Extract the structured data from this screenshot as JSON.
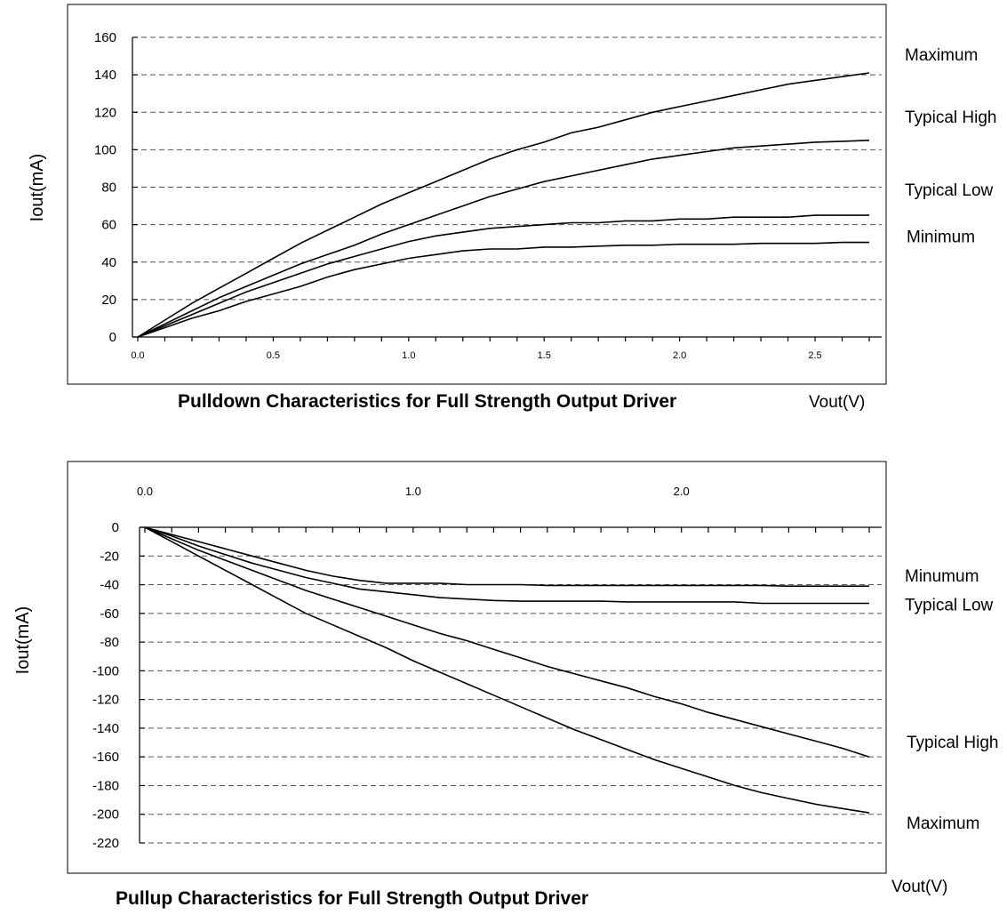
{
  "chart_data": [
    {
      "type": "line",
      "title": "Pulldown Characteristics for Full Strength Output Driver",
      "ylabel": "Iout(mA)",
      "xlabel": "Vout(V)",
      "xlim": [
        0,
        2.7
      ],
      "ylim": [
        0,
        160
      ],
      "yticks": [
        "0",
        "20",
        "40",
        "60",
        "80",
        "100",
        "120",
        "140",
        "160"
      ],
      "xticks": [
        "0.0",
        "0.5",
        "1.0",
        "1.5",
        "2.0",
        "2.5"
      ],
      "grid": true,
      "x": [
        0,
        0.1,
        0.2,
        0.3,
        0.4,
        0.5,
        0.6,
        0.7,
        0.8,
        0.9,
        1.0,
        1.1,
        1.2,
        1.3,
        1.4,
        1.5,
        1.6,
        1.7,
        1.8,
        1.9,
        2.0,
        2.1,
        2.2,
        2.3,
        2.4,
        2.5,
        2.6,
        2.7
      ],
      "series": [
        {
          "name": "Maximum",
          "values": [
            0,
            9,
            18,
            26,
            34,
            42,
            50,
            57,
            64,
            71,
            77,
            83,
            89,
            95,
            100,
            104,
            109,
            112,
            116,
            120,
            123,
            126,
            129,
            132,
            135,
            137,
            139,
            141
          ]
        },
        {
          "name": "Typical High",
          "values": [
            0,
            7,
            14,
            21,
            27,
            33,
            39,
            44,
            49,
            55,
            60,
            65,
            70,
            75,
            79,
            83,
            86,
            89,
            92,
            95,
            97,
            99,
            101,
            102,
            103,
            104,
            104.5,
            105
          ]
        },
        {
          "name": "Typical Low",
          "values": [
            0,
            6,
            12,
            18,
            24,
            29,
            34,
            39,
            43,
            47,
            51,
            54,
            56,
            58,
            59,
            60,
            61,
            61,
            62,
            62,
            63,
            63,
            64,
            64,
            64,
            65,
            65,
            65
          ]
        },
        {
          "name": "Minimum",
          "values": [
            0,
            5,
            10,
            14,
            19,
            23,
            27,
            32,
            36,
            39,
            42,
            44,
            46,
            47,
            47,
            48,
            48,
            48.5,
            49,
            49,
            49.5,
            49.5,
            49.5,
            50,
            50,
            50,
            50.5,
            50.5
          ]
        }
      ]
    },
    {
      "type": "line",
      "title": "Pullup Characteristics for Full Strength Output Driver",
      "ylabel": "Iout(mA)",
      "xlabel": "Vout(V)",
      "xlim": [
        0,
        2.7
      ],
      "ylim": [
        -220,
        0
      ],
      "yticks": [
        "0",
        "-20",
        "-40",
        "-60",
        "-80",
        "-100",
        "-120",
        "-140",
        "-160",
        "-180",
        "-200",
        "-220"
      ],
      "xticks": [
        "0.0",
        "1.0",
        "2.0"
      ],
      "grid": true,
      "x": [
        0,
        0.1,
        0.2,
        0.3,
        0.4,
        0.5,
        0.6,
        0.7,
        0.8,
        0.9,
        1.0,
        1.1,
        1.2,
        1.3,
        1.4,
        1.5,
        1.6,
        1.7,
        1.8,
        1.9,
        2.0,
        2.1,
        2.2,
        2.3,
        2.4,
        2.5,
        2.6,
        2.7
      ],
      "series": [
        {
          "name": "Minumum",
          "values": [
            0,
            -5,
            -10,
            -15,
            -20,
            -25,
            -30,
            -34,
            -37,
            -39,
            -39,
            -39,
            -40,
            -40,
            -40,
            -40.5,
            -40.5,
            -40.5,
            -40.5,
            -40.5,
            -40.5,
            -40.5,
            -40.5,
            -40.5,
            -41,
            -41,
            -41,
            -41
          ]
        },
        {
          "name": "Typical Low",
          "values": [
            0,
            -6,
            -13,
            -19,
            -25,
            -30,
            -35,
            -39,
            -43,
            -45,
            -47,
            -49,
            -50,
            -51,
            -51.5,
            -51.5,
            -51.5,
            -51.5,
            -52,
            -52,
            -52,
            -52,
            -52,
            -53,
            -53,
            -53,
            -53,
            -53
          ]
        },
        {
          "name": "Typical High",
          "values": [
            0,
            -8,
            -16,
            -23,
            -30,
            -37,
            -44,
            -50,
            -56,
            -62,
            -68,
            -74,
            -79,
            -85,
            -91,
            -97,
            -102,
            -107,
            -112,
            -118,
            -123,
            -129,
            -134,
            -139,
            -144,
            -149,
            -154,
            -160
          ]
        },
        {
          "name": "Maximum",
          "values": [
            0,
            -10,
            -20,
            -30,
            -40,
            -50,
            -60,
            -68,
            -76,
            -84,
            -93,
            -101,
            -109,
            -117,
            -125,
            -133,
            -141,
            -148,
            -155,
            -162,
            -168,
            -174,
            -180,
            -185,
            -189,
            -193,
            -196,
            -199
          ]
        }
      ]
    }
  ]
}
